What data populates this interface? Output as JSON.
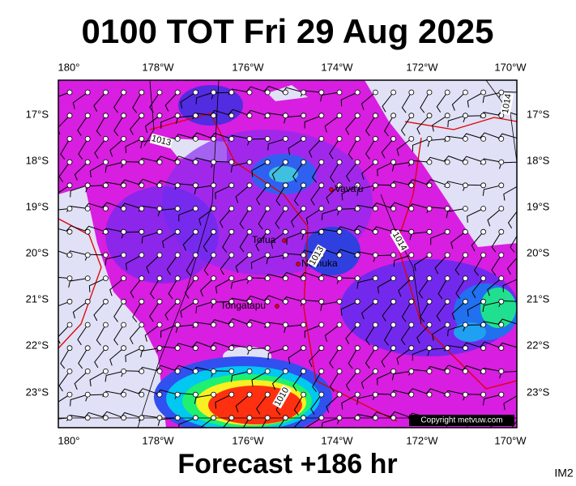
{
  "header": {
    "title": "0100 TOT Fri 29 Aug 2025"
  },
  "map": {
    "lon_labels": [
      "180°",
      "178°W",
      "176°W",
      "174°W",
      "172°W",
      "170°W"
    ],
    "lat_labels": [
      "17°S",
      "18°S",
      "19°S",
      "20°S",
      "21°S",
      "22°S",
      "23°S"
    ],
    "places": [
      "Vava'u",
      "Tofua",
      "Nomuka",
      "Tongatapu"
    ],
    "isobar_labels": [
      "1013",
      "1014",
      "1013",
      "1014",
      "1010"
    ],
    "copyright": "Copyright metvuw.com"
  },
  "footer": {
    "forecast": "Forecast +186 hr",
    "code": "IM2"
  }
}
